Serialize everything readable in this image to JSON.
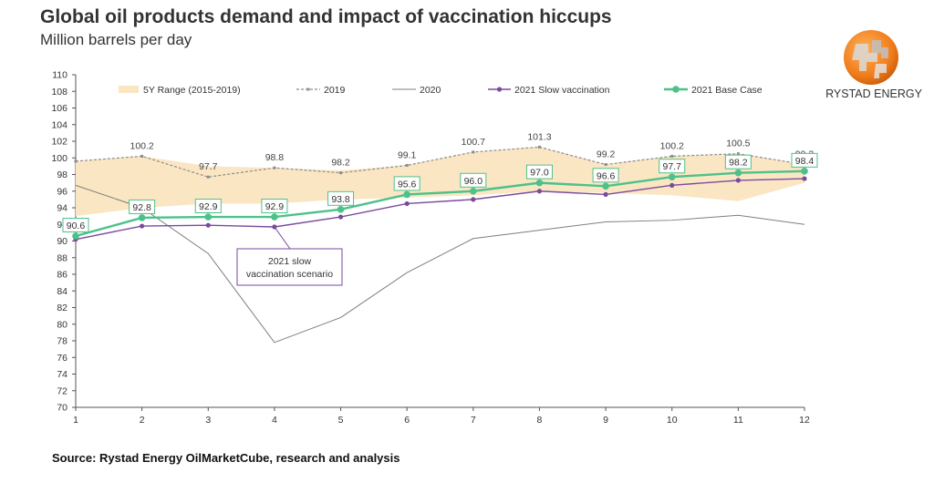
{
  "header": {
    "title": "Global oil products demand and impact of vaccination hiccups",
    "subtitle": "Million barrels per day"
  },
  "logo": {
    "text": "RYSTAD ENERGY"
  },
  "footer": {
    "source": "Source: Rystad Energy OilMarketCube, research and analysis"
  },
  "colors": {
    "range_fill": "#fbe6c4",
    "line_2019": "#8c8c8c",
    "line_2020": "#7f7f7f",
    "slow": "#7b4a9c",
    "base": "#4dc18a"
  },
  "chart_data": {
    "type": "line",
    "title": "Global oil products demand and impact of vaccination hiccups",
    "ylabel": "Million barrels per day",
    "x": [
      1,
      2,
      3,
      4,
      5,
      6,
      7,
      8,
      9,
      10,
      11,
      12
    ],
    "ylim": [
      70,
      110
    ],
    "yticks": [
      70,
      72,
      74,
      76,
      78,
      80,
      82,
      84,
      86,
      88,
      90,
      92,
      94,
      96,
      98,
      100,
      102,
      104,
      106,
      108,
      110
    ],
    "band": {
      "name": "5Y Range (2015-2019)",
      "low": [
        93.0,
        94.0,
        94.5,
        94.5,
        95.0,
        95.2,
        95.5,
        96.0,
        95.8,
        95.5,
        94.8,
        97.0
      ],
      "high": [
        99.6,
        100.2,
        99.0,
        98.8,
        98.5,
        99.1,
        100.7,
        101.3,
        99.2,
        100.2,
        100.5,
        99.2
      ]
    },
    "series": [
      {
        "name": "2019",
        "values": [
          99.6,
          100.2,
          97.7,
          98.8,
          98.2,
          99.1,
          100.7,
          101.3,
          99.2,
          100.2,
          100.5,
          99.2
        ],
        "labels": [
          "",
          "100.2",
          "97.7",
          "98.8",
          "98.2",
          "99.1",
          "100.7",
          "101.3",
          "99.2",
          "100.2",
          "100.5",
          "99.2"
        ]
      },
      {
        "name": "2020",
        "values": [
          96.7,
          94.0,
          88.5,
          77.8,
          80.8,
          86.2,
          90.3,
          91.3,
          92.3,
          92.5,
          93.1,
          92.0
        ]
      },
      {
        "name": "2021 Slow vaccination",
        "values": [
          90.2,
          91.8,
          91.9,
          91.7,
          92.9,
          94.5,
          95.0,
          96.0,
          95.6,
          96.7,
          97.3,
          97.5
        ]
      },
      {
        "name": "2021 Base Case",
        "values": [
          90.6,
          92.8,
          92.9,
          92.9,
          93.8,
          95.6,
          96.0,
          97.0,
          96.6,
          97.7,
          98.2,
          98.4
        ],
        "labels": [
          "90.6",
          "92.8",
          "92.9",
          "92.9",
          "93.8",
          "95.6",
          "96.0",
          "97.0",
          "96.6",
          "97.7",
          "98.2",
          "98.4"
        ]
      }
    ],
    "annotation": {
      "line1": "2021 slow",
      "line2": "vaccination scenario"
    },
    "legend": [
      "5Y Range (2015-2019)",
      "2019",
      "2020",
      "2021 Slow vaccination",
      "2021 Base Case"
    ]
  }
}
